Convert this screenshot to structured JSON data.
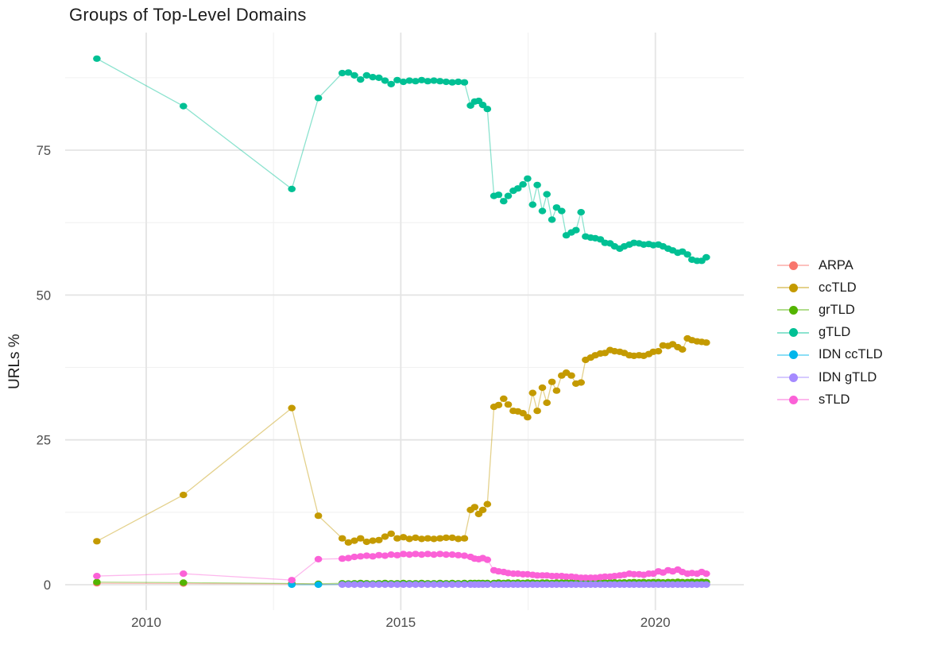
{
  "title": "Groups of Top-Level Domains",
  "chart_data": {
    "type": "scatter",
    "title": "Groups of Top-Level Domains",
    "xlabel": "",
    "ylabel": "URLs %",
    "grid": "on",
    "legend_position": "right",
    "background": "#ffffff",
    "grid_color_major": "#e4e4e4",
    "grid_color_minor": "#f1f1f1",
    "tick_label_color": "#4d4d4d",
    "x_ticks": [
      2010,
      2015,
      2020
    ],
    "x_minor": [
      2012.5,
      2017.5
    ],
    "y_ticks": [
      0,
      25,
      50,
      75
    ],
    "y_minor": [
      12.5,
      37.5,
      62.5,
      87.5
    ],
    "xlim": [
      2008.4,
      2021.6
    ],
    "ylim": [
      -4.5,
      95.3
    ],
    "draw_order": [
      "ARPA",
      "ccTLD",
      "grTLD",
      "IDN ccTLD",
      "IDN gTLD",
      "gTLD",
      "sTLD"
    ],
    "x": [
      2009.03,
      2010.73,
      2012.86,
      2013.38,
      2013.85,
      2013.97,
      2014.09,
      2014.21,
      2014.33,
      2014.45,
      2014.57,
      2014.69,
      2014.81,
      2014.93,
      2015.05,
      2015.17,
      2015.29,
      2015.41,
      2015.53,
      2015.65,
      2015.77,
      2015.89,
      2016.01,
      2016.13,
      2016.25,
      2016.37,
      2016.45,
      2016.53,
      2016.61,
      2016.7,
      2016.83,
      2016.92,
      2017.02,
      2017.11,
      2017.21,
      2017.3,
      2017.4,
      2017.49,
      2017.59,
      2017.68,
      2017.78,
      2017.87,
      2017.97,
      2018.06,
      2018.16,
      2018.25,
      2018.35,
      2018.44,
      2018.54,
      2018.63,
      2018.73,
      2018.82,
      2018.92,
      2019.01,
      2019.11,
      2019.2,
      2019.3,
      2019.39,
      2019.49,
      2019.58,
      2019.68,
      2019.77,
      2019.87,
      2019.96,
      2020.06,
      2020.15,
      2020.25,
      2020.34,
      2020.44,
      2020.53,
      2020.63,
      2020.72,
      2020.82,
      2020.91,
      2021.0
    ],
    "series": [
      {
        "name": "ARPA",
        "color": "#F8766D",
        "values": [
          0.25,
          0.2,
          0.12,
          0.1,
          0.05,
          0.05,
          0.05,
          0.05,
          0.05,
          0.05,
          0.05,
          0.05,
          0.05,
          0.05,
          0.05,
          0.05,
          0.05,
          0.05,
          0.05,
          0.05,
          0.05,
          0.05,
          0.05,
          0.05,
          0.05,
          0.05,
          0.05,
          0.05,
          0.05,
          0.05,
          0.05,
          0.05,
          0.05,
          0.05,
          0.05,
          0.05,
          0.05,
          0.05,
          0.05,
          0.05,
          0.05,
          0.05,
          0.05,
          0.05,
          0.05,
          0.05,
          0.05,
          0.05,
          0.05,
          0.05,
          0.05,
          0.05,
          0.05,
          0.05,
          0.05,
          0.05,
          0.05,
          0.05,
          0.05,
          0.05,
          0.05,
          0.05,
          0.05,
          0.05,
          0.05,
          0.05,
          0.05,
          0.05,
          0.05,
          0.05,
          0.05,
          0.05,
          0.05,
          0.05,
          0.05
        ]
      },
      {
        "name": "ccTLD",
        "color": "#C49A00",
        "values": [
          7.5,
          15.5,
          30.5,
          11.9,
          8.0,
          7.3,
          7.6,
          8.0,
          7.4,
          7.6,
          7.7,
          8.3,
          8.8,
          8.0,
          8.2,
          7.9,
          8.1,
          7.9,
          8.0,
          7.9,
          8.0,
          8.1,
          8.1,
          7.9,
          8.0,
          12.9,
          13.4,
          12.2,
          12.9,
          13.9,
          30.7,
          31.0,
          32.1,
          31.1,
          30.0,
          29.9,
          29.6,
          28.9,
          33.1,
          30.0,
          34.0,
          31.4,
          35.0,
          33.5,
          36.1,
          36.6,
          36.1,
          34.7,
          34.9,
          38.8,
          39.2,
          39.6,
          39.9,
          40.0,
          40.5,
          40.3,
          40.2,
          40.0,
          39.6,
          39.5,
          39.6,
          39.5,
          39.8,
          40.2,
          40.3,
          41.3,
          41.2,
          41.5,
          41.0,
          40.6,
          42.5,
          42.2,
          42.0,
          41.9,
          41.8
        ]
      },
      {
        "name": "grTLD",
        "color": "#53B400",
        "values": [
          0.45,
          0.35,
          0.2,
          0.15,
          0.25,
          0.2,
          0.25,
          0.3,
          0.25,
          0.2,
          0.25,
          0.3,
          0.25,
          0.25,
          0.3,
          0.25,
          0.25,
          0.3,
          0.25,
          0.25,
          0.3,
          0.25,
          0.3,
          0.25,
          0.3,
          0.3,
          0.3,
          0.3,
          0.3,
          0.3,
          0.3,
          0.35,
          0.3,
          0.35,
          0.3,
          0.35,
          0.3,
          0.35,
          0.35,
          0.3,
          0.35,
          0.35,
          0.3,
          0.35,
          0.35,
          0.4,
          0.35,
          0.4,
          0.35,
          0.4,
          0.35,
          0.4,
          0.4,
          0.35,
          0.4,
          0.4,
          0.35,
          0.4,
          0.4,
          0.45,
          0.4,
          0.45,
          0.4,
          0.45,
          0.45,
          0.4,
          0.45,
          0.45,
          0.5,
          0.45,
          0.45,
          0.5,
          0.45,
          0.5,
          0.45
        ]
      },
      {
        "name": "gTLD",
        "color": "#00C094",
        "values": [
          90.8,
          82.6,
          68.3,
          84.0,
          88.3,
          88.4,
          87.9,
          87.2,
          87.9,
          87.6,
          87.5,
          87.0,
          86.4,
          87.1,
          86.8,
          87.0,
          86.9,
          87.1,
          86.9,
          87.0,
          86.9,
          86.8,
          86.7,
          86.8,
          86.7,
          82.7,
          83.4,
          83.5,
          82.8,
          82.1,
          67.1,
          67.3,
          66.2,
          67.1,
          68.0,
          68.4,
          69.1,
          70.1,
          65.6,
          69.0,
          64.5,
          67.4,
          63.0,
          65.1,
          64.5,
          60.3,
          60.8,
          61.2,
          64.3,
          60.1,
          59.9,
          59.8,
          59.6,
          59.0,
          58.9,
          58.4,
          58.0,
          58.4,
          58.7,
          59.0,
          58.9,
          58.7,
          58.8,
          58.6,
          58.7,
          58.4,
          58.0,
          57.7,
          57.3,
          57.5,
          57.0,
          56.1,
          55.9,
          55.9,
          56.5
        ]
      },
      {
        "name": "IDN ccTLD",
        "color": "#00B6EB",
        "values": [
          null,
          null,
          0.0,
          0.0,
          0.05,
          0.05,
          0.05,
          0.05,
          0.05,
          0.05,
          0.05,
          0.05,
          0.05,
          0.05,
          0.05,
          0.05,
          0.05,
          0.05,
          0.05,
          0.05,
          0.05,
          0.05,
          0.05,
          0.05,
          0.05,
          0.05,
          0.05,
          0.05,
          0.05,
          0.05,
          0.05,
          0.05,
          0.05,
          0.05,
          0.05,
          0.05,
          0.05,
          0.05,
          0.05,
          0.05,
          0.05,
          0.05,
          0.05,
          0.05,
          0.05,
          0.05,
          0.05,
          0.05,
          0.05,
          0.05,
          0.05,
          0.05,
          0.05,
          0.05,
          0.05,
          0.05,
          0.05,
          0.05,
          0.05,
          0.05,
          0.05,
          0.05,
          0.05,
          0.05,
          0.05,
          0.05,
          0.05,
          0.05,
          0.05,
          0.05,
          0.05,
          0.05,
          0.05,
          0.05,
          0.05
        ]
      },
      {
        "name": "IDN gTLD",
        "color": "#A58AFF",
        "values": [
          null,
          null,
          null,
          null,
          0.02,
          0.02,
          0.02,
          0.02,
          0.02,
          0.02,
          0.02,
          0.02,
          0.02,
          0.02,
          0.02,
          0.02,
          0.02,
          0.02,
          0.02,
          0.02,
          0.02,
          0.02,
          0.02,
          0.02,
          0.02,
          0.02,
          0.02,
          0.02,
          0.02,
          0.02,
          0.02,
          0.02,
          0.02,
          0.02,
          0.02,
          0.02,
          0.02,
          0.02,
          0.02,
          0.02,
          0.02,
          0.02,
          0.02,
          0.02,
          0.02,
          0.02,
          0.02,
          0.02,
          0.02,
          0.02,
          0.02,
          0.02,
          0.02,
          0.02,
          0.02,
          0.02,
          0.02,
          0.02,
          0.02,
          0.02,
          0.02,
          0.02,
          0.02,
          0.02,
          0.02,
          0.02,
          0.02,
          0.02,
          0.02,
          0.02,
          0.02,
          0.02,
          0.02,
          0.02,
          0.02
        ]
      },
      {
        "name": "sTLD",
        "color": "#FB61D7",
        "values": [
          1.5,
          1.9,
          0.8,
          4.4,
          4.5,
          4.6,
          4.8,
          4.9,
          5.0,
          4.9,
          5.1,
          5.0,
          5.2,
          5.1,
          5.3,
          5.2,
          5.3,
          5.2,
          5.3,
          5.2,
          5.3,
          5.2,
          5.2,
          5.1,
          5.0,
          4.8,
          4.5,
          4.4,
          4.6,
          4.3,
          2.5,
          2.3,
          2.2,
          2.0,
          1.9,
          1.9,
          1.8,
          1.8,
          1.7,
          1.6,
          1.6,
          1.6,
          1.5,
          1.5,
          1.5,
          1.4,
          1.4,
          1.3,
          1.2,
          1.2,
          1.2,
          1.2,
          1.3,
          1.4,
          1.4,
          1.5,
          1.6,
          1.7,
          1.9,
          1.8,
          1.8,
          1.7,
          1.9,
          1.9,
          2.3,
          2.1,
          2.5,
          2.3,
          2.6,
          2.2,
          1.9,
          2.0,
          1.9,
          2.2,
          1.9
        ]
      }
    ]
  }
}
